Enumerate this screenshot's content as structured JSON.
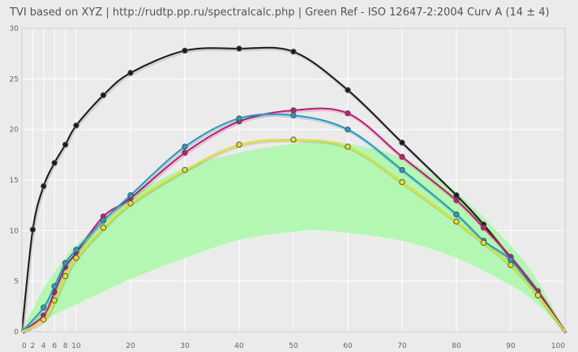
{
  "chart_data": {
    "type": "line",
    "title": "TVI based on XYZ  |  http://rudtp.pp.ru/spectralcalc.php  |  Green Ref - ISO 12647-2:2004 Curv A (14 ± 4)",
    "xlim": [
      0,
      100
    ],
    "ylim": [
      0,
      30
    ],
    "x_ticks": [
      0,
      2,
      4,
      6,
      8,
      10,
      20,
      30,
      40,
      50,
      60,
      70,
      80,
      90,
      100
    ],
    "y_ticks": [
      0,
      5,
      10,
      15,
      20,
      25,
      30
    ],
    "grid": true,
    "legend": "none",
    "reference_band": {
      "color": "#b3f7b3",
      "x": [
        0,
        2,
        4,
        6,
        8,
        10,
        20,
        30,
        40,
        50,
        55,
        60,
        70,
        80,
        90,
        95,
        100
      ],
      "upper": [
        0,
        2.2,
        4.3,
        5.9,
        7.3,
        8.6,
        13.3,
        16.2,
        17.7,
        18.6,
        18.8,
        18.6,
        17.2,
        13.8,
        8.5,
        5.0,
        0
      ],
      "lower": [
        0,
        0.5,
        1.1,
        1.7,
        2.2,
        2.7,
        5.2,
        7.3,
        9.1,
        9.9,
        10.0,
        9.8,
        9.0,
        7.3,
        4.6,
        2.7,
        0
      ]
    },
    "series": [
      {
        "color": "#1a1a1a",
        "x": [
          0,
          2,
          4,
          6,
          8,
          10,
          15,
          20,
          30,
          40,
          50,
          60,
          70,
          80,
          85,
          90,
          95,
          100
        ],
        "values": [
          0,
          10.1,
          14.4,
          16.7,
          18.5,
          20.4,
          23.4,
          25.6,
          27.8,
          28.0,
          27.7,
          23.9,
          18.7,
          13.5,
          10.6,
          7.3,
          4.0,
          0
        ]
      },
      {
        "color": "#d6127a",
        "x": [
          0,
          4,
          6,
          8,
          10,
          15,
          20,
          30,
          40,
          50,
          60,
          70,
          80,
          85,
          90,
          95,
          100
        ],
        "values": [
          0,
          1.6,
          3.9,
          6.4,
          7.8,
          11.4,
          13.2,
          17.7,
          20.8,
          21.9,
          21.6,
          17.3,
          13.0,
          10.3,
          7.4,
          4.0,
          0
        ]
      },
      {
        "color": "#1a9fcf",
        "x": [
          0,
          4,
          6,
          8,
          10,
          15,
          20,
          30,
          40,
          50,
          60,
          70,
          80,
          85,
          90,
          95,
          100
        ],
        "values": [
          0,
          2.4,
          4.5,
          6.8,
          8.1,
          11.0,
          13.5,
          18.3,
          21.1,
          21.4,
          20.0,
          16.0,
          11.6,
          9.0,
          7.1,
          3.7,
          0
        ]
      },
      {
        "color": "#e6e619",
        "x": [
          0,
          4,
          6,
          8,
          10,
          15,
          20,
          30,
          40,
          50,
          60,
          70,
          80,
          85,
          90,
          95,
          100
        ],
        "values": [
          0,
          1.2,
          3.1,
          5.5,
          7.3,
          10.3,
          12.7,
          16.0,
          18.5,
          19.0,
          18.3,
          14.8,
          10.9,
          8.8,
          6.6,
          3.6,
          0
        ]
      }
    ]
  }
}
